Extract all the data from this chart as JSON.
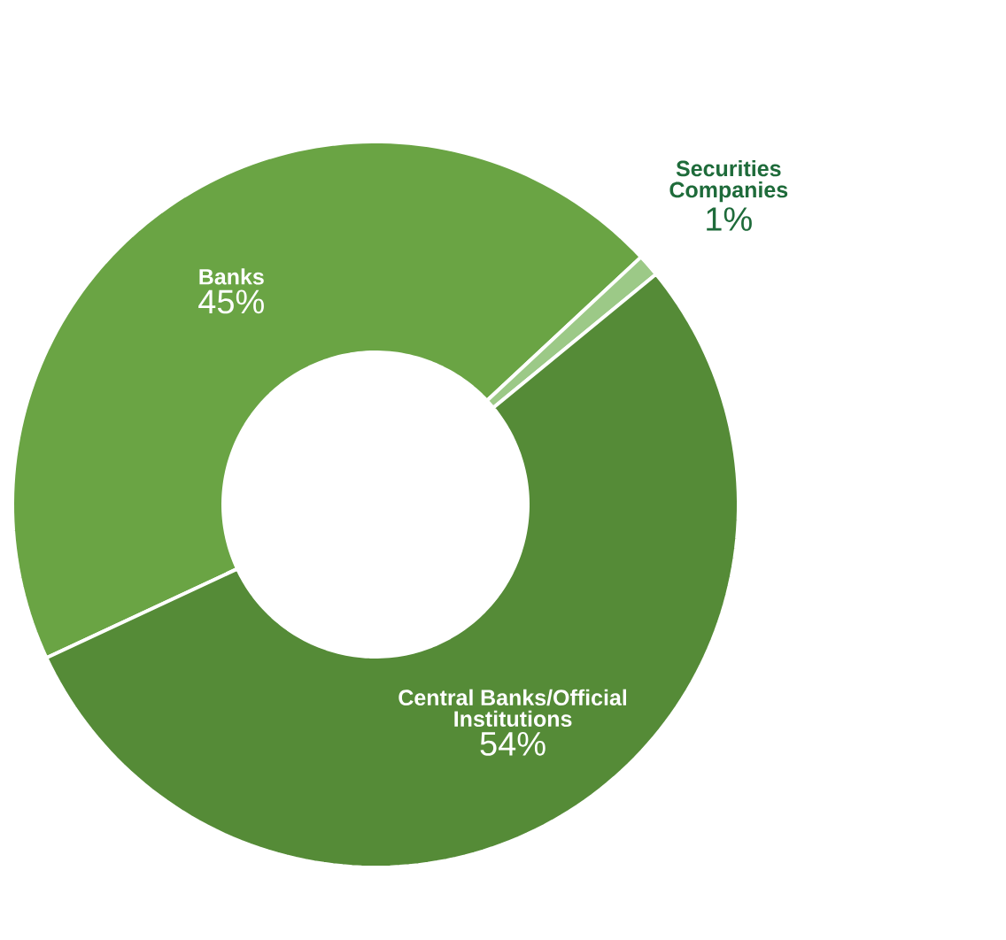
{
  "chart_data": {
    "type": "donut",
    "categories": [
      "Banks",
      "Securities Companies",
      "Central Banks/Official Institutions"
    ],
    "values": [
      45,
      1,
      54
    ],
    "colors": [
      "#6aa444",
      "#9cc987",
      "#558b37"
    ],
    "value_labels": [
      "45%",
      "1%",
      "54%"
    ]
  }
}
